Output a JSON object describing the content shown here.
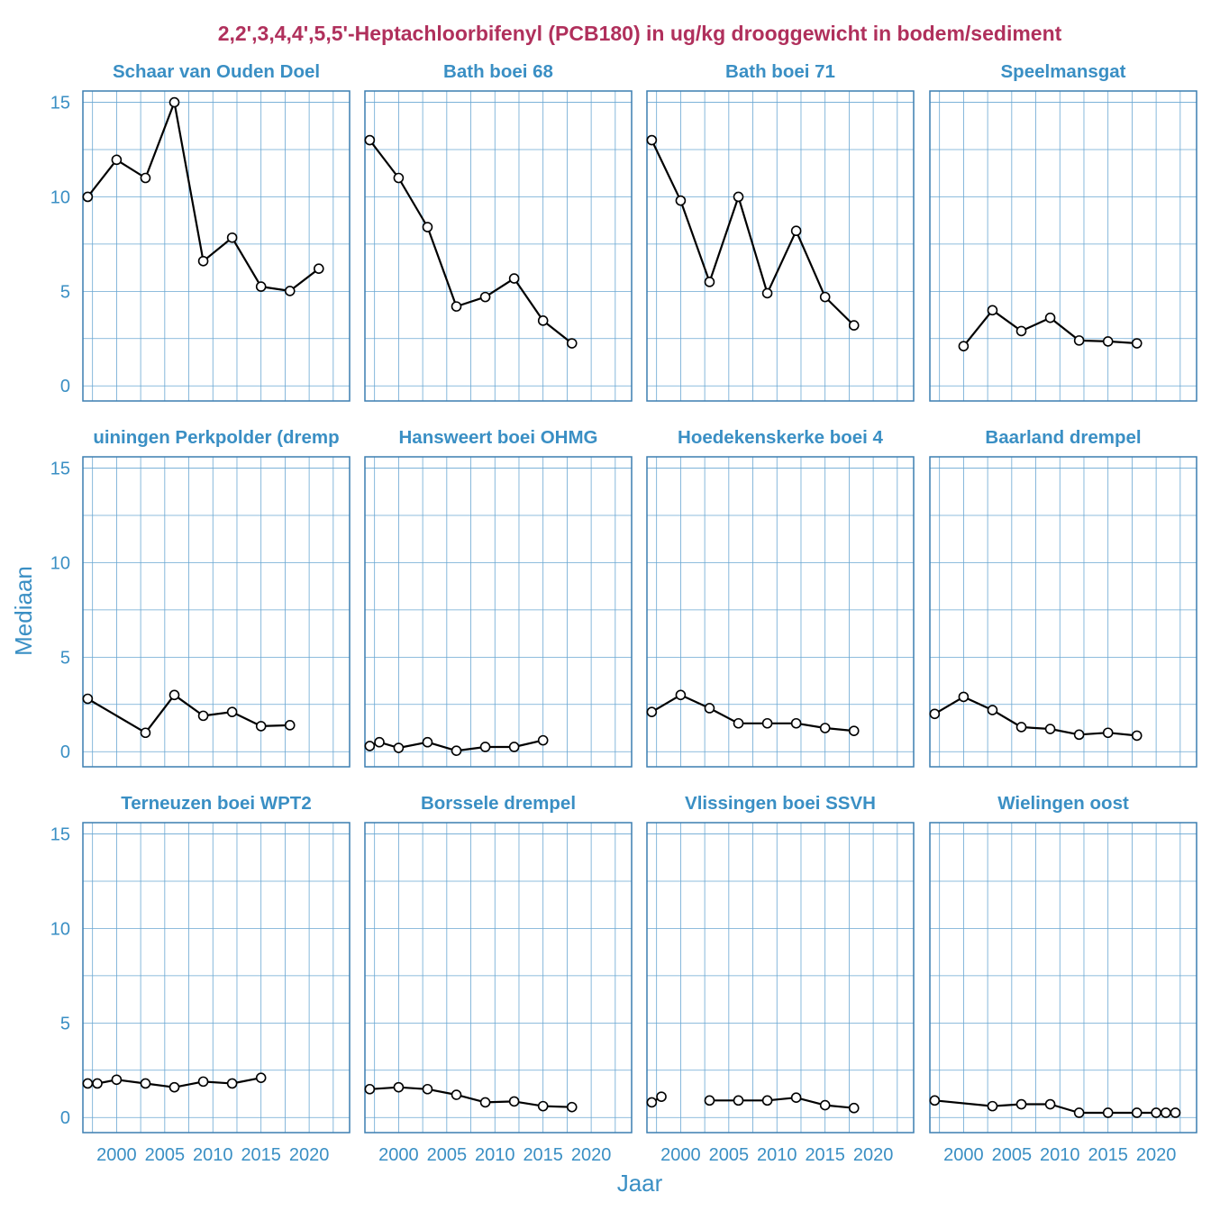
{
  "chart_data": {
    "type": "line",
    "title": "2,2',3,4,4',5,5'-Heptachloorbifenyl (PCB180) in ug/kg drooggewicht in bodem/sediment",
    "xlabel": "Jaar",
    "ylabel": "Mediaan",
    "xlim": [
      1996.5,
      2024.2
    ],
    "ylim": [
      -0.8,
      15.6
    ],
    "xticks": [
      2000,
      2005,
      2010,
      2015,
      2020
    ],
    "xtick_labels": [
      "2000",
      "2005",
      "2010",
      "2015",
      "2020"
    ],
    "yticks": [
      0,
      5,
      10,
      15
    ],
    "ytick_labels": [
      "0",
      "5",
      "10",
      "15"
    ],
    "grid": true,
    "panels": [
      {
        "name": "Schaar van Ouden Doel",
        "x": [
          1997,
          2000,
          2003,
          2006,
          2009,
          2012,
          2015,
          2018,
          2021
        ],
        "y": [
          10.0,
          11.96,
          11.0,
          15.0,
          6.6,
          7.84,
          5.25,
          5.02,
          6.2
        ]
      },
      {
        "name": "Bath boei 68",
        "x": [
          1997,
          2000,
          2003,
          2006,
          2009,
          2012,
          2015,
          2018
        ],
        "y": [
          13.0,
          11.0,
          8.4,
          4.2,
          4.7,
          5.68,
          3.45,
          2.25
        ]
      },
      {
        "name": "Bath boei 71",
        "x": [
          1997,
          2000,
          2003,
          2006,
          2009,
          2012,
          2015,
          2018
        ],
        "y": [
          13.0,
          9.8,
          5.5,
          10.0,
          4.9,
          8.2,
          4.7,
          3.2
        ]
      },
      {
        "name": "Speelmansgat",
        "x": [
          2000,
          2003,
          2006,
          2009,
          2012,
          2015,
          2018
        ],
        "y": [
          2.1,
          4.0,
          2.9,
          3.6,
          2.4,
          2.35,
          2.25
        ]
      },
      {
        "name": "Hansweert - Ellewoutsdijk / Kruiningen Perkpolder (drempel)",
        "x": [
          1997,
          2003,
          2006,
          2009,
          2012,
          2015,
          2018
        ],
        "y": [
          2.8,
          1.0,
          3.0,
          1.9,
          2.1,
          1.35,
          1.4
        ]
      },
      {
        "name": "Hansweert boei OHMG",
        "x": [
          1997,
          1998,
          2000,
          2003,
          2006,
          2009,
          2012,
          2015
        ],
        "y": [
          0.3,
          0.5,
          0.2,
          0.5,
          0.05,
          0.25,
          0.25,
          0.6
        ]
      },
      {
        "name": "Hoedekenskerke boei 4",
        "x": [
          1997,
          2000,
          2003,
          2006,
          2009,
          2012,
          2015,
          2018
        ],
        "y": [
          2.1,
          3.0,
          2.3,
          1.5,
          1.5,
          1.5,
          1.25,
          1.1
        ]
      },
      {
        "name": "Baarland drempel",
        "x": [
          1997,
          2000,
          2003,
          2006,
          2009,
          2012,
          2015,
          2018
        ],
        "y": [
          2.0,
          2.9,
          2.2,
          1.3,
          1.2,
          0.9,
          1.0,
          0.85
        ]
      },
      {
        "name": "Terneuzen boei WPT2",
        "x": [
          1997,
          1998,
          2000,
          2003,
          2006,
          2009,
          2012,
          2015
        ],
        "y": [
          1.8,
          1.8,
          2.0,
          1.8,
          1.6,
          1.9,
          1.8,
          2.1
        ]
      },
      {
        "name": "Borssele drempel",
        "x": [
          1997,
          2000,
          2003,
          2006,
          2009,
          2012,
          2015,
          2018
        ],
        "y": [
          1.5,
          1.6,
          1.5,
          1.2,
          0.8,
          0.85,
          0.6,
          0.55
        ]
      },
      {
        "name": "Vlissingen boei SSVH",
        "x": [
          1997,
          1998,
          2003,
          2006,
          2009,
          2012,
          2015,
          2018
        ],
        "y": [
          0.8,
          1.1,
          0.9,
          0.9,
          0.9,
          1.05,
          0.65,
          0.5
        ],
        "segments": [
          [
            0,
            1
          ],
          [
            2,
            7
          ]
        ]
      },
      {
        "name": "Wielingen oost",
        "x": [
          1997,
          2003,
          2006,
          2009,
          2012,
          2015,
          2018,
          2020,
          2021,
          2022
        ],
        "y": [
          0.9,
          0.6,
          0.7,
          0.7,
          0.25,
          0.25,
          0.25,
          0.25,
          0.25,
          0.25
        ]
      }
    ],
    "strip_labels": [
      "Schaar van Ouden Doel",
      "Bath boei 68",
      "Bath boei 71",
      "Speelmansgat",
      "uiningen Perkpolder (dremp",
      "Hansweert boei OHMG",
      "Hoedekenskerke boei 4",
      "Baarland drempel",
      "Terneuzen boei WPT2",
      "Borssele drempel",
      "Vlissingen boei SSVH",
      "Wielingen oost"
    ]
  }
}
